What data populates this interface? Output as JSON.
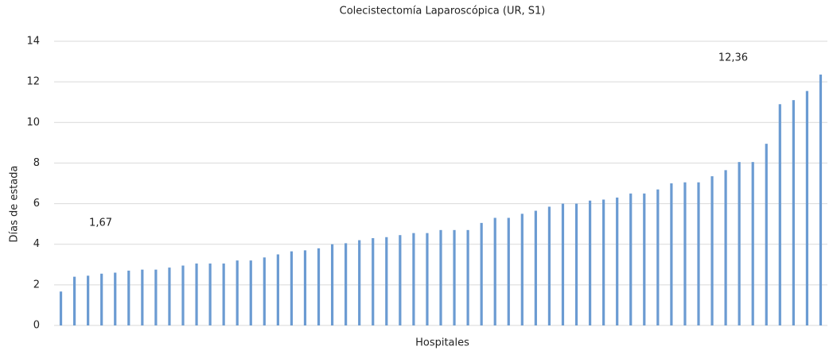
{
  "chart_data": {
    "type": "bar",
    "title": "Colecistectomía Laparoscópica (UR, S1)",
    "x_label": "Hospitales",
    "y_label": "Días de estada",
    "categories": [
      null,
      null,
      null,
      null,
      null,
      null,
      null,
      null,
      null,
      null,
      null,
      null,
      null,
      null,
      null,
      null,
      null,
      null,
      null,
      null,
      null,
      null,
      null,
      null,
      null,
      null,
      null,
      null,
      null,
      null,
      null,
      null,
      null,
      null,
      null,
      null,
      null,
      null,
      null,
      null,
      null,
      null,
      null,
      null,
      null,
      null,
      null,
      null,
      null,
      null,
      null,
      null,
      null,
      null,
      null,
      null,
      null
    ],
    "values": [
      1.67,
      2.4,
      2.45,
      2.55,
      2.6,
      2.7,
      2.75,
      2.75,
      2.85,
      2.95,
      3.05,
      3.05,
      3.05,
      3.2,
      3.2,
      3.35,
      3.5,
      3.65,
      3.7,
      3.8,
      4.0,
      4.05,
      4.2,
      4.3,
      4.35,
      4.45,
      4.55,
      4.55,
      4.7,
      4.7,
      4.7,
      5.05,
      5.3,
      5.3,
      5.5,
      5.65,
      5.85,
      6.0,
      6.0,
      6.15,
      6.2,
      6.3,
      6.5,
      6.5,
      6.7,
      7.0,
      7.05,
      7.05,
      7.35,
      7.65,
      8.05,
      8.05,
      8.95,
      10.9,
      11.1,
      11.55,
      12.36
    ],
    "value_labels": [
      "1,67",
      null,
      null,
      null,
      null,
      null,
      null,
      null,
      null,
      null,
      null,
      null,
      null,
      null,
      null,
      null,
      null,
      null,
      null,
      null,
      null,
      null,
      null,
      null,
      null,
      null,
      null,
      null,
      null,
      null,
      null,
      null,
      null,
      null,
      null,
      null,
      null,
      null,
      null,
      null,
      null,
      null,
      null,
      null,
      null,
      null,
      null,
      null,
      null,
      null,
      null,
      null,
      null,
      null,
      null,
      null,
      "12,36"
    ],
    "color": "#6b9bd2",
    "ylim": [
      0,
      14
    ],
    "yticks": [
      0,
      2,
      4,
      6,
      8,
      10,
      12,
      14
    ],
    "grid": true
  }
}
